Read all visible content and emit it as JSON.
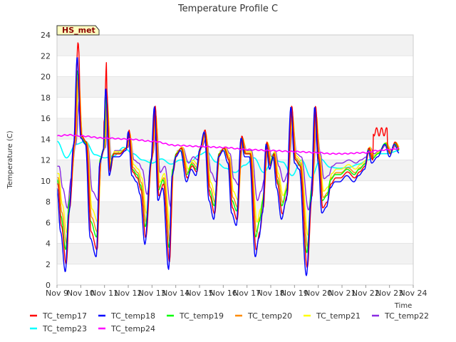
{
  "chart_data": {
    "type": "line",
    "title": "Temperature Profile C",
    "xlabel": "Time",
    "ylabel": "Temperature (C)",
    "badge": "HS_met",
    "ylim": [
      0,
      24
    ],
    "yticks": [
      0,
      2,
      4,
      6,
      8,
      10,
      12,
      14,
      16,
      18,
      20,
      22,
      24
    ],
    "xlim": [
      0,
      15
    ],
    "x_ticks": [
      "Nov 9",
      "Nov 10",
      "Nov 11",
      "Nov 12",
      "Nov 13",
      "Nov 14",
      "Nov 15",
      "Nov 16",
      "Nov 17",
      "Nov 18",
      "Nov 19",
      "Nov 20",
      "Nov 21",
      "Nov 22",
      "Nov 23",
      "Nov 24"
    ],
    "background_bands": true,
    "legend_position": "bottom",
    "series": [
      {
        "name": "TC_temp17",
        "color": "#ff0000",
        "offset": 0.12,
        "amp": 1.15,
        "bias": 0.0
      },
      {
        "name": "TC_temp18",
        "color": "#0000ff",
        "offset": 0.0,
        "amp": 1.2,
        "bias": -0.3
      },
      {
        "name": "TC_temp19",
        "color": "#00ff00",
        "offset": 0.06,
        "amp": 1.0,
        "bias": 0.1
      },
      {
        "name": "TC_temp20",
        "color": "#ff8c00",
        "offset": 0.18,
        "amp": 0.95,
        "bias": 0.2
      },
      {
        "name": "TC_temp21",
        "color": "#ffff00",
        "offset": 0.24,
        "amp": 0.85,
        "bias": 0.4
      },
      {
        "name": "TC_temp22",
        "color": "#8a2be2",
        "offset": 0.3,
        "amp": 0.6,
        "bias": 0.6
      },
      {
        "name": "TC_temp23",
        "color": "#00ffff",
        "smooth": true
      },
      {
        "name": "TC_temp24",
        "color": "#ff00ff",
        "flat": true
      }
    ],
    "base_profile": [
      [
        0.0,
        10.0
      ],
      [
        0.15,
        6.5
      ],
      [
        0.35,
        3.3
      ],
      [
        0.5,
        8.0
      ],
      [
        0.7,
        13.5
      ],
      [
        0.85,
        20.5
      ],
      [
        1.0,
        14.0
      ],
      [
        1.2,
        13.5
      ],
      [
        1.4,
        6.0
      ],
      [
        1.65,
        4.5
      ],
      [
        1.8,
        12.0
      ],
      [
        1.95,
        13.0
      ],
      [
        2.05,
        18.0
      ],
      [
        2.2,
        11.0
      ],
      [
        2.35,
        12.5
      ],
      [
        2.6,
        12.5
      ],
      [
        2.9,
        13.0
      ],
      [
        3.0,
        14.5
      ],
      [
        3.15,
        11.0
      ],
      [
        3.35,
        10.5
      ],
      [
        3.5,
        9.5
      ],
      [
        3.7,
        5.5
      ],
      [
        3.95,
        12.0
      ],
      [
        4.1,
        16.5
      ],
      [
        4.25,
        9.0
      ],
      [
        4.45,
        10.0
      ],
      [
        4.7,
        3.5
      ],
      [
        4.85,
        11.0
      ],
      [
        5.0,
        12.5
      ],
      [
        5.2,
        13.0
      ],
      [
        5.45,
        10.5
      ],
      [
        5.65,
        11.5
      ],
      [
        5.85,
        11.0
      ],
      [
        6.0,
        13.0
      ],
      [
        6.2,
        14.5
      ],
      [
        6.4,
        9.0
      ],
      [
        6.6,
        7.5
      ],
      [
        6.8,
        12.5
      ],
      [
        7.0,
        13.0
      ],
      [
        7.2,
        12.0
      ],
      [
        7.35,
        8.0
      ],
      [
        7.55,
        7.0
      ],
      [
        7.75,
        14.0
      ],
      [
        7.9,
        12.5
      ],
      [
        8.1,
        12.5
      ],
      [
        8.35,
        4.5
      ],
      [
        8.5,
        6.0
      ],
      [
        8.65,
        8.0
      ],
      [
        8.8,
        13.5
      ],
      [
        8.95,
        11.5
      ],
      [
        9.1,
        12.5
      ],
      [
        9.25,
        10.0
      ],
      [
        9.45,
        7.5
      ],
      [
        9.65,
        9.0
      ],
      [
        9.85,
        16.5
      ],
      [
        10.0,
        12.0
      ],
      [
        10.2,
        11.5
      ],
      [
        10.5,
        3.0
      ],
      [
        10.7,
        9.0
      ],
      [
        10.85,
        16.5
      ],
      [
        11.0,
        12.0
      ],
      [
        11.15,
        8.0
      ],
      [
        11.35,
        8.5
      ],
      [
        11.5,
        10.0
      ],
      [
        11.7,
        10.5
      ],
      [
        11.9,
        10.5
      ],
      [
        12.2,
        11.0
      ],
      [
        12.5,
        10.5
      ],
      [
        12.7,
        11.0
      ],
      [
        12.95,
        11.5
      ],
      [
        13.1,
        13.0
      ],
      [
        13.25,
        12.0
      ],
      [
        13.5,
        12.5
      ],
      [
        13.8,
        13.5
      ],
      [
        14.0,
        12.5
      ],
      [
        14.2,
        13.5
      ],
      [
        14.4,
        12.8
      ]
    ],
    "temp23_profile": [
      [
        0.0,
        13.8
      ],
      [
        0.4,
        12.2
      ],
      [
        0.8,
        13.5
      ],
      [
        1.2,
        13.8
      ],
      [
        1.6,
        12.5
      ],
      [
        2.0,
        12.2
      ],
      [
        2.4,
        12.4
      ],
      [
        2.8,
        13.2
      ],
      [
        3.2,
        12.6
      ],
      [
        3.6,
        12.0
      ],
      [
        4.0,
        11.7
      ],
      [
        4.4,
        12.1
      ],
      [
        4.8,
        11.6
      ],
      [
        5.2,
        12.0
      ],
      [
        5.6,
        11.8
      ],
      [
        6.0,
        12.5
      ],
      [
        6.3,
        12.8
      ],
      [
        6.7,
        11.8
      ],
      [
        7.1,
        11.2
      ],
      [
        7.5,
        10.8
      ],
      [
        7.9,
        11.5
      ],
      [
        8.3,
        12.2
      ],
      [
        8.7,
        10.8
      ],
      [
        9.1,
        12.0
      ],
      [
        9.5,
        11.8
      ],
      [
        9.9,
        10.5
      ],
      [
        10.3,
        12.0
      ],
      [
        10.7,
        10.3
      ],
      [
        11.1,
        12.1
      ],
      [
        11.5,
        11.3
      ],
      [
        11.9,
        11.2
      ],
      [
        12.3,
        11.3
      ],
      [
        12.7,
        11.6
      ],
      [
        13.1,
        12.0
      ],
      [
        13.5,
        12.6
      ],
      [
        13.9,
        12.6
      ],
      [
        14.4,
        12.9
      ]
    ],
    "temp24_profile": [
      [
        0.0,
        14.3
      ],
      [
        0.5,
        14.4
      ],
      [
        1.0,
        14.3
      ],
      [
        2.0,
        14.1
      ],
      [
        3.0,
        14.0
      ],
      [
        4.0,
        13.8
      ],
      [
        5.0,
        13.4
      ],
      [
        6.0,
        13.3
      ],
      [
        7.0,
        13.2
      ],
      [
        8.0,
        13.0
      ],
      [
        9.0,
        12.9
      ],
      [
        10.0,
        12.8
      ],
      [
        11.0,
        12.7
      ],
      [
        11.5,
        12.6
      ],
      [
        12.0,
        12.6
      ],
      [
        13.0,
        12.7
      ],
      [
        13.5,
        12.9
      ],
      [
        14.0,
        13.0
      ],
      [
        14.4,
        13.1
      ]
    ]
  }
}
